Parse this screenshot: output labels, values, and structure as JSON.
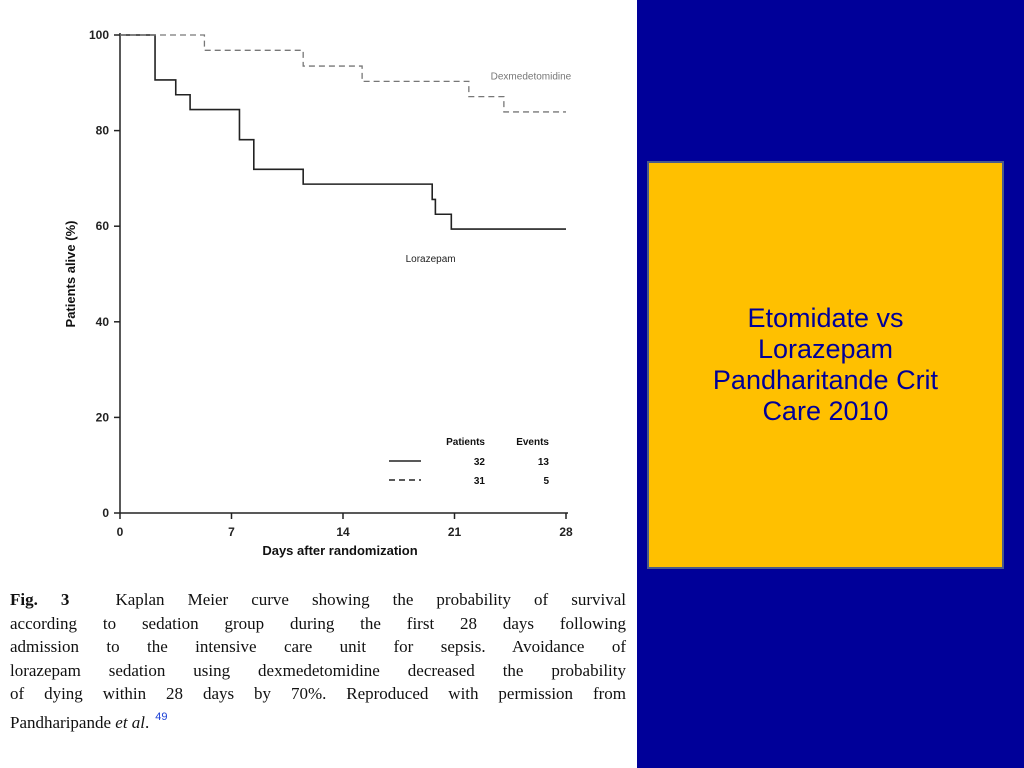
{
  "chart_data": {
    "type": "line",
    "subtype": "kaplan-meier step curve",
    "xlabel": "Days after randomization",
    "ylabel": "Patients alive (%)",
    "xlim": [
      0,
      28
    ],
    "ylim": [
      0,
      100
    ],
    "xticks": [
      0,
      7,
      14,
      21,
      28
    ],
    "yticks": [
      0,
      20,
      40,
      60,
      80,
      100
    ],
    "grid": false,
    "series": [
      {
        "name": "Lorazepam",
        "style": "solid",
        "color": "#222222",
        "x": [
          0,
          2.1,
          2.2,
          3.5,
          4.4,
          7.5,
          8.4,
          11.5,
          19.6,
          19.8,
          20.8,
          28
        ],
        "y": [
          100,
          100,
          90.6,
          87.5,
          84.4,
          78.1,
          71.9,
          68.8,
          65.6,
          62.5,
          59.4,
          59.4
        ]
      },
      {
        "name": "Dexmedetomidine",
        "style": "dashed",
        "color": "#777777",
        "x": [
          0,
          5.3,
          11.5,
          15.2,
          21.9,
          24.1,
          28
        ],
        "y": [
          100,
          96.8,
          93.5,
          90.3,
          87.1,
          83.9,
          83.9
        ]
      }
    ],
    "legend": {
      "position": "bottom-right",
      "header": [
        "Patients",
        "Events"
      ],
      "rows": [
        {
          "series": "Lorazepam",
          "style": "solid",
          "patients": "32",
          "events": "13"
        },
        {
          "series": "Dexmedetomidine",
          "style": "dashed",
          "patients": "31",
          "events": "5"
        }
      ]
    }
  },
  "caption": {
    "fig": "Fig. 3",
    "lines": [
      "Kaplan Meier curve showing the probability of survival",
      "according to sedation group during the first 28 days following",
      "admission to the intensive care unit for sepsis. Avoidance of",
      "lorazepam sedation using dexmedetomidine decreased the probability",
      "of dying within 28 days by 70%. Reproduced with permission from"
    ],
    "last_line_before": "Pandharipande",
    "last_line_italic": "et al",
    "last_line_after": ".",
    "reference": "49"
  },
  "slide_title": {
    "lines": [
      "Etomidate vs",
      "Lorazepam",
      "Pandharitande Crit",
      "Care 2010"
    ]
  },
  "colors": {
    "background": "#000099",
    "title_box": "#ffc000",
    "title_text": "#000099"
  }
}
